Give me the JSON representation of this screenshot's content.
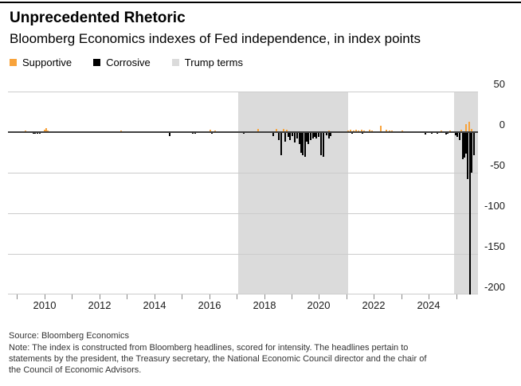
{
  "chart_data": {
    "type": "bar",
    "title": "Unprecedented Rhetoric",
    "subtitle": "Bloomberg Economics indexes of Fed independence, in index points",
    "ylabel": "index points",
    "grid": true,
    "legend_position": "top-left",
    "legend": [
      {
        "label": "Supportive",
        "color": "#F8A33B"
      },
      {
        "label": "Corrosive",
        "color": "#000000"
      },
      {
        "label": "Trump terms",
        "color": "#DBDBDB"
      }
    ],
    "x_range": [
      2008.67,
      2025.79
    ],
    "ylim": [
      -200,
      50
    ],
    "y_ticks": [
      50,
      0,
      -50,
      -100,
      -150,
      -200
    ],
    "x_ticks": [
      {
        "year": 2009,
        "label": ""
      },
      {
        "year": 2010,
        "label": "2010"
      },
      {
        "year": 2011,
        "label": ""
      },
      {
        "year": 2012,
        "label": "2012"
      },
      {
        "year": 2013,
        "label": ""
      },
      {
        "year": 2014,
        "label": "2014"
      },
      {
        "year": 2015,
        "label": ""
      },
      {
        "year": 2016,
        "label": "2016"
      },
      {
        "year": 2017,
        "label": ""
      },
      {
        "year": 2018,
        "label": "2018"
      },
      {
        "year": 2019,
        "label": ""
      },
      {
        "year": 2020,
        "label": "2020"
      },
      {
        "year": 2021,
        "label": ""
      },
      {
        "year": 2022,
        "label": "2022"
      },
      {
        "year": 2023,
        "label": ""
      },
      {
        "year": 2024,
        "label": "2024"
      },
      {
        "year": 2025,
        "label": ""
      }
    ],
    "bands": {
      "name": "Trump terms",
      "color": "#DBDBDB",
      "ranges": [
        [
          2017.05,
          2021.05
        ],
        [
          2024.93,
          2025.79
        ]
      ]
    },
    "series": [
      {
        "name": "Supportive",
        "color": "#F8A33B",
        "points": [
          [
            2009.3,
            2
          ],
          [
            2010.0,
            3
          ],
          [
            2010.06,
            5
          ],
          [
            2010.12,
            2
          ],
          [
            2012.8,
            2
          ],
          [
            2016.05,
            3
          ],
          [
            2016.2,
            2
          ],
          [
            2017.77,
            4
          ],
          [
            2018.45,
            4
          ],
          [
            2018.71,
            4
          ],
          [
            2018.83,
            3
          ],
          [
            2020.36,
            2
          ],
          [
            2021.06,
            2
          ],
          [
            2021.15,
            3
          ],
          [
            2021.26,
            2
          ],
          [
            2021.35,
            3
          ],
          [
            2021.44,
            2
          ],
          [
            2021.55,
            3
          ],
          [
            2021.64,
            2
          ],
          [
            2021.84,
            3
          ],
          [
            2021.93,
            2
          ],
          [
            2022.25,
            8
          ],
          [
            2022.45,
            3
          ],
          [
            2022.57,
            2
          ],
          [
            2022.65,
            2
          ],
          [
            2023.03,
            2
          ],
          [
            2024.45,
            2
          ],
          [
            2024.77,
            2
          ],
          [
            2025.18,
            3
          ],
          [
            2025.35,
            10
          ],
          [
            2025.47,
            13
          ],
          [
            2025.56,
            4
          ]
        ]
      },
      {
        "name": "Corrosive",
        "color": "#000000",
        "points": [
          [
            2009.6,
            -2
          ],
          [
            2009.67,
            -2
          ],
          [
            2009.75,
            -2
          ],
          [
            2009.83,
            -2
          ],
          [
            2014.55,
            -5
          ],
          [
            2015.4,
            -2
          ],
          [
            2015.5,
            -2
          ],
          [
            2016.1,
            -2
          ],
          [
            2017.25,
            -2
          ],
          [
            2018.33,
            -5
          ],
          [
            2018.53,
            -10
          ],
          [
            2018.62,
            -28
          ],
          [
            2018.77,
            -12
          ],
          [
            2018.88,
            -6
          ],
          [
            2018.94,
            -10
          ],
          [
            2019.03,
            -5
          ],
          [
            2019.11,
            -13
          ],
          [
            2019.2,
            -8
          ],
          [
            2019.29,
            -15
          ],
          [
            2019.35,
            -25
          ],
          [
            2019.4,
            -28
          ],
          [
            2019.49,
            -30
          ],
          [
            2019.55,
            -12
          ],
          [
            2019.6,
            -15
          ],
          [
            2019.7,
            -10
          ],
          [
            2019.78,
            -8
          ],
          [
            2019.84,
            -6
          ],
          [
            2019.9,
            -8
          ],
          [
            2019.98,
            -6
          ],
          [
            2020.07,
            -28
          ],
          [
            2020.16,
            -30
          ],
          [
            2020.27,
            -4
          ],
          [
            2020.36,
            -8
          ],
          [
            2020.42,
            -5
          ],
          [
            2021.2,
            -2
          ],
          [
            2021.58,
            -2
          ],
          [
            2023.87,
            -3
          ],
          [
            2024.1,
            -2
          ],
          [
            2024.3,
            -2
          ],
          [
            2024.62,
            -3
          ],
          [
            2024.68,
            -2
          ],
          [
            2024.98,
            -4
          ],
          [
            2025.03,
            -6
          ],
          [
            2025.12,
            -10
          ],
          [
            2025.24,
            -33
          ],
          [
            2025.3,
            -31
          ],
          [
            2025.35,
            -26
          ],
          [
            2025.41,
            -58
          ],
          [
            2025.5,
            -200
          ],
          [
            2025.56,
            -50
          ],
          [
            2025.64,
            -28
          ]
        ]
      }
    ]
  },
  "footer": {
    "source": "Source: Bloomberg Economics",
    "note_lines": [
      "Note: The index is constructed from Bloomberg headlines, scored for intensity. The headlines pertain to",
      "statements by the president, the Treasury secretary, the National Economic Council director and the chair of",
      "the Council of Economic Advisors."
    ]
  }
}
